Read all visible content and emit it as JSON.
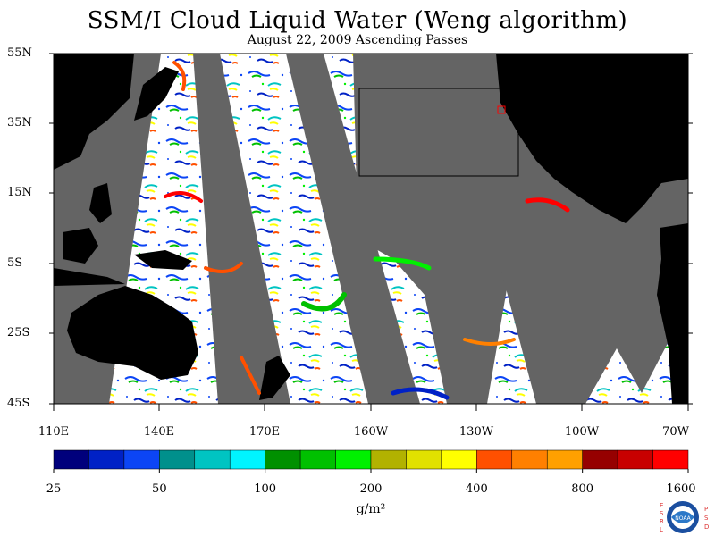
{
  "title": "SSM/I Cloud Liquid Water (Weng algorithm)",
  "subtitle": "August 22, 2009  Ascending Passes",
  "lat_labels": [
    "55N",
    "35N",
    "15N",
    "5S",
    "25S",
    "45S"
  ],
  "lon_labels": [
    "110E",
    "140E",
    "170E",
    "160W",
    "130W",
    "100W",
    "70W"
  ],
  "colorbar": {
    "colors": [
      "#00007c",
      "#0021c6",
      "#0c45f5",
      "#00908c",
      "#00c4c2",
      "#00f4ff",
      "#009000",
      "#00c000",
      "#00f000",
      "#b2b200",
      "#e1e100",
      "#ffff00",
      "#ff5000",
      "#ff8000",
      "#ffa000",
      "#960000",
      "#c80000",
      "#ff0000"
    ],
    "labels": [
      "25",
      "50",
      "100",
      "200",
      "400",
      "800",
      "1600"
    ]
  },
  "unit_label": "g/m²",
  "colors": {
    "no_data": "#646464",
    "land": "#000000",
    "ocean_clear": "#ffffff"
  },
  "logo": {
    "left_text": [
      "E",
      "S",
      "R",
      "L"
    ],
    "right_text": [
      "P",
      "S",
      "D"
    ],
    "center_text": "NOAA"
  }
}
